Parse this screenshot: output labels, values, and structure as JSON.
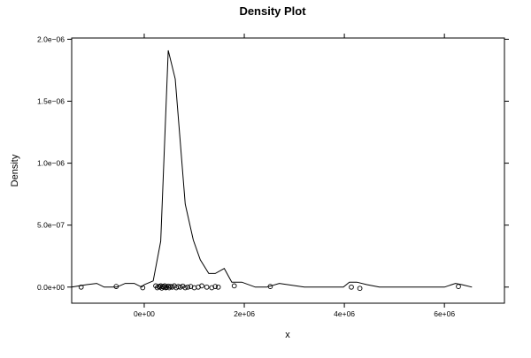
{
  "chart_data": {
    "type": "line",
    "title": "Density Plot",
    "xlabel": "x",
    "ylabel": "Density",
    "xlim": [
      -1450000,
      7200000
    ],
    "ylim": [
      -130000000,
      2010000000
    ],
    "y_scale_factor": 1e-15,
    "x_ticks": [
      {
        "value": 0,
        "label": "0e+00"
      },
      {
        "value": 2000000,
        "label": "2e+06"
      },
      {
        "value": 4000000,
        "label": "4e+06"
      },
      {
        "value": 6000000,
        "label": "6e+06"
      }
    ],
    "y_ticks": [
      {
        "value": 0,
        "label": "0.0e+00"
      },
      {
        "value": 500000000,
        "label": "5.0e−07"
      },
      {
        "value": 1000000000,
        "label": "1.0e−06"
      },
      {
        "value": 1500000000,
        "label": "1.5e−06"
      },
      {
        "value": 2000000000,
        "label": "2.0e−06"
      }
    ],
    "grid": false,
    "series": [
      {
        "line_color": "#000000",
        "x": [
          -1450000,
          -1150000,
          -950000,
          -800000,
          -550000,
          -380000,
          -200000,
          -50000,
          0,
          180000,
          330000,
          480000,
          620000,
          820000,
          980000,
          1120000,
          1290000,
          1420000,
          1600000,
          1750000,
          1950000,
          2220000,
          2450000,
          2700000,
          3200000,
          3700000,
          3980000,
          4100000,
          4250000,
          4450000,
          4700000,
          5000000,
          5500000,
          6000000,
          6220000,
          6350000,
          6550000
        ],
        "y": [
          0,
          20000000,
          30000000,
          0,
          0,
          30000000,
          30000000,
          0,
          20000000,
          50000000,
          370000000,
          1910000000,
          1680000000,
          670000000,
          380000000,
          220000000,
          110000000,
          110000000,
          150000000,
          40000000,
          40000000,
          0,
          0,
          30000000,
          0,
          0,
          0,
          40000000,
          40000000,
          20000000,
          0,
          0,
          0,
          0,
          30000000,
          20000000,
          0
        ]
      }
    ],
    "rug_points": {
      "marker": "open-circle",
      "x": [
        -1260000,
        -560000,
        -30000,
        230000,
        260000,
        290000,
        310000,
        330000,
        350000,
        370000,
        390000,
        410000,
        430000,
        450000,
        480000,
        500000,
        530000,
        560000,
        600000,
        640000,
        680000,
        720000,
        770000,
        820000,
        870000,
        930000,
        1000000,
        1080000,
        1150000,
        1250000,
        1350000,
        1420000,
        1480000,
        1800000,
        2520000,
        4140000,
        4310000,
        6280000
      ],
      "y": [
        0,
        5000000,
        -5000000,
        10000000,
        -5000000,
        5000000,
        0,
        10000000,
        -8000000,
        5000000,
        0,
        10000000,
        -5000000,
        0,
        8000000,
        -5000000,
        5000000,
        0,
        10000000,
        -5000000,
        5000000,
        0,
        8000000,
        -5000000,
        0,
        5000000,
        -5000000,
        0,
        10000000,
        0,
        -5000000,
        5000000,
        0,
        10000000,
        5000000,
        0,
        -10000000,
        5000000
      ]
    }
  }
}
